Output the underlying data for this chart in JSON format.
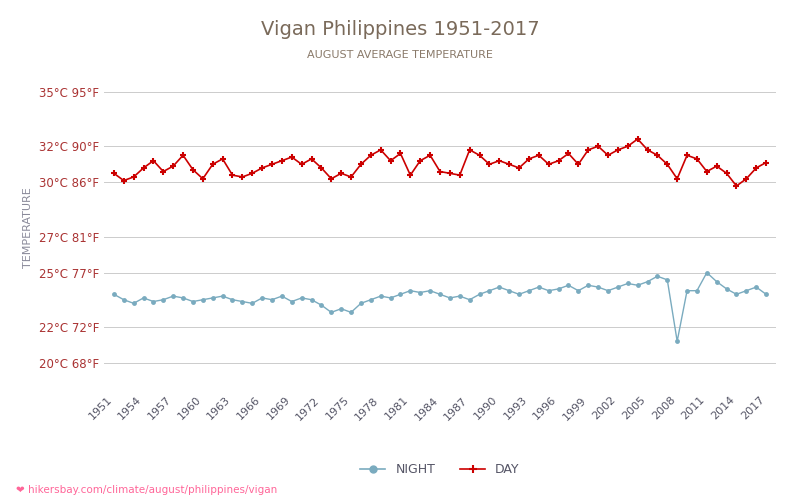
{
  "title": "Vigan Philippines 1951-2017",
  "subtitle": "AUGUST AVERAGE TEMPERATURE",
  "ylabel": "TEMPERATURE",
  "url_text": "hikersbay.com/climate/august/philippines/vigan",
  "title_color": "#7a6a5a",
  "subtitle_color": "#8a7a6a",
  "ylabel_color": "#8a8a9a",
  "tick_color": "#aa3333",
  "grid_color": "#cccccc",
  "bg_color": "#ffffff",
  "day_color": "#cc0000",
  "night_color": "#7aabbf",
  "years": [
    1951,
    1952,
    1953,
    1954,
    1955,
    1956,
    1957,
    1958,
    1959,
    1960,
    1961,
    1962,
    1963,
    1964,
    1965,
    1966,
    1967,
    1968,
    1969,
    1970,
    1971,
    1972,
    1973,
    1974,
    1975,
    1976,
    1977,
    1978,
    1979,
    1980,
    1981,
    1982,
    1983,
    1984,
    1985,
    1986,
    1987,
    1988,
    1989,
    1990,
    1991,
    1992,
    1993,
    1994,
    1995,
    1996,
    1997,
    1998,
    1999,
    2000,
    2001,
    2002,
    2003,
    2004,
    2005,
    2006,
    2007,
    2008,
    2009,
    2010,
    2011,
    2012,
    2013,
    2014,
    2015,
    2016,
    2017
  ],
  "day_temps": [
    30.5,
    30.1,
    30.3,
    30.8,
    31.2,
    30.6,
    30.9,
    31.5,
    30.7,
    30.2,
    31.0,
    31.3,
    30.4,
    30.3,
    30.5,
    30.8,
    31.0,
    31.2,
    31.4,
    31.0,
    31.3,
    30.8,
    30.2,
    30.5,
    30.3,
    31.0,
    31.5,
    31.8,
    31.2,
    31.6,
    30.4,
    31.2,
    31.5,
    30.6,
    30.5,
    30.4,
    31.8,
    31.5,
    31.0,
    31.2,
    31.0,
    30.8,
    31.3,
    31.5,
    31.0,
    31.2,
    31.6,
    31.0,
    31.8,
    32.0,
    31.5,
    31.8,
    32.0,
    32.4,
    31.8,
    31.5,
    31.0,
    30.2,
    31.5,
    31.3,
    30.6,
    30.9,
    30.5,
    29.8,
    30.2,
    30.8,
    31.1
  ],
  "night_temps": [
    23.8,
    23.5,
    23.3,
    23.6,
    23.4,
    23.5,
    23.7,
    23.6,
    23.4,
    23.5,
    23.6,
    23.7,
    23.5,
    23.4,
    23.3,
    23.6,
    23.5,
    23.7,
    23.4,
    23.6,
    23.5,
    23.2,
    22.8,
    23.0,
    22.8,
    23.3,
    23.5,
    23.7,
    23.6,
    23.8,
    24.0,
    23.9,
    24.0,
    23.8,
    23.6,
    23.7,
    23.5,
    23.8,
    24.0,
    24.2,
    24.0,
    23.8,
    24.0,
    24.2,
    24.0,
    24.1,
    24.3,
    24.0,
    24.3,
    24.2,
    24.0,
    24.2,
    24.4,
    24.3,
    24.5,
    24.8,
    24.6,
    21.2,
    24.0,
    24.0,
    25.0,
    24.5,
    24.1,
    23.8,
    24.0,
    24.2,
    23.8
  ],
  "yticks_c": [
    20,
    22,
    25,
    27,
    30,
    32,
    35
  ],
  "yticks_f": [
    68,
    72,
    77,
    81,
    86,
    90,
    95
  ],
  "xticks": [
    1951,
    1954,
    1957,
    1960,
    1963,
    1966,
    1969,
    1972,
    1975,
    1978,
    1981,
    1984,
    1987,
    1990,
    1993,
    1996,
    1999,
    2002,
    2005,
    2008,
    2011,
    2014,
    2017
  ],
  "ymin": 18.5,
  "ymax": 36.5,
  "xmin": 1950,
  "xmax": 2018
}
